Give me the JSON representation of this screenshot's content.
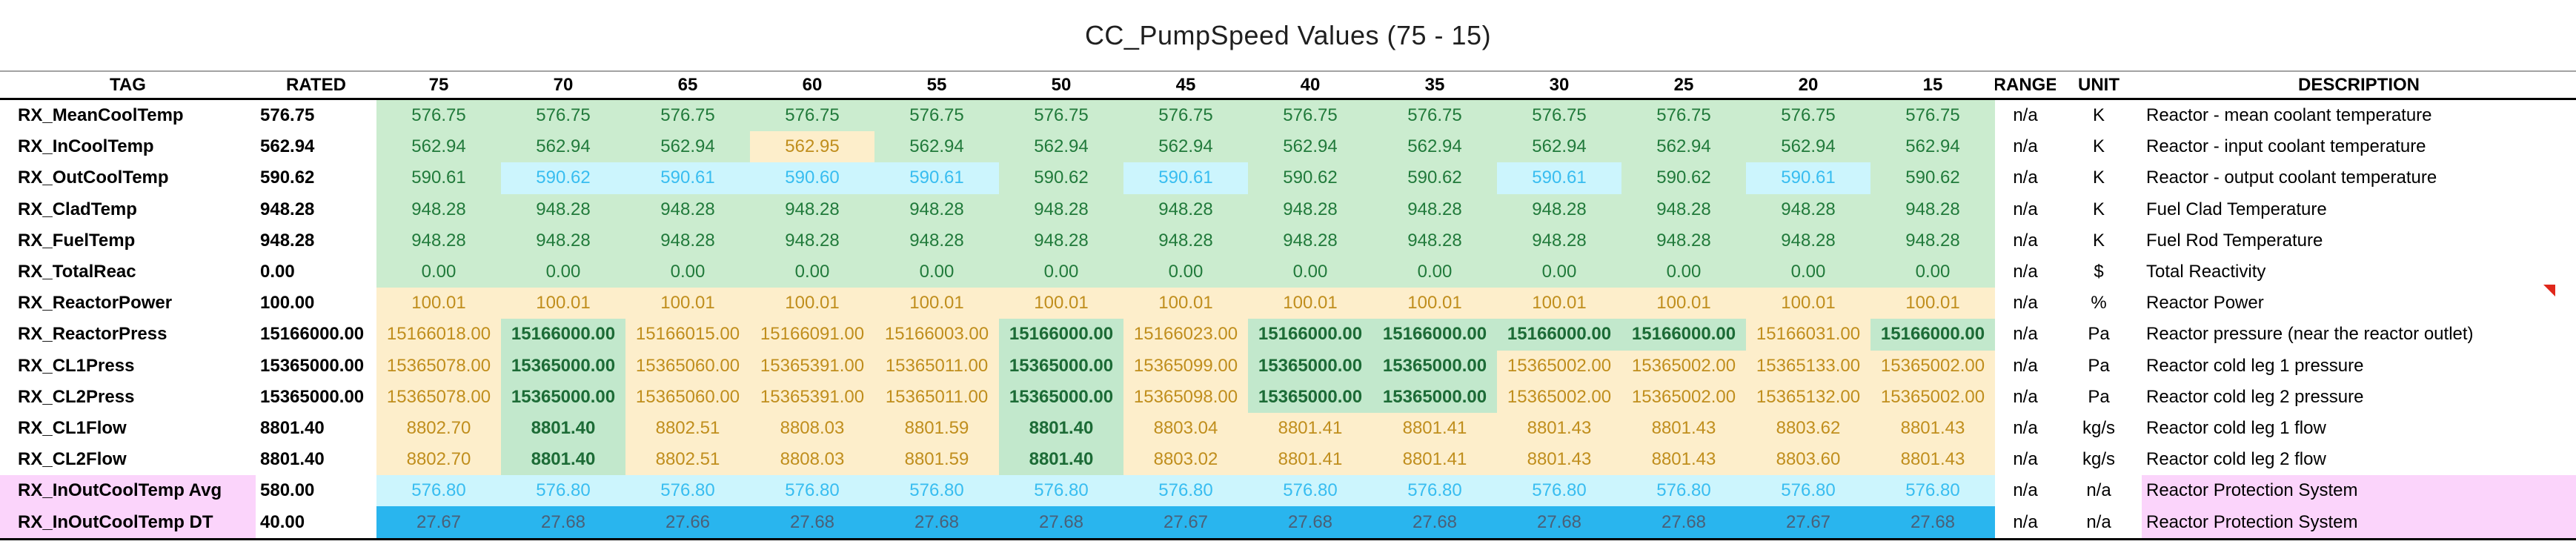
{
  "title": "CC_PumpSpeed Values (75 - 15)",
  "colors": {
    "good_bg": "#cbeccf",
    "good_text": "#217a3b",
    "match_bg": "#c2e8cc",
    "match_text": "#1c6b36",
    "warn_bg": "#fdeecb",
    "warn_text": "#c08e1d",
    "cyan_bg": "#ccf5fd",
    "cyan_text": "#38bdf0",
    "blue_bg": "#29b5ee",
    "blue_text": "#4a6078",
    "pink_bg": "#fbd4fb",
    "flag_red": "#e0271b"
  },
  "table": {
    "headers": [
      "TAG",
      "RATED",
      "75",
      "70",
      "65",
      "60",
      "55",
      "50",
      "45",
      "40",
      "35",
      "30",
      "25",
      "20",
      "15",
      "RANGE",
      "UNIT",
      "DESCRIPTION"
    ],
    "rows": [
      {
        "tag": "RX_MeanCoolTemp",
        "rated": "576.75",
        "range": "n/a",
        "unit": "K",
        "desc": "Reactor - mean coolant temperature",
        "pink": false,
        "values": [
          [
            "576.75",
            "g"
          ],
          [
            "576.75",
            "g"
          ],
          [
            "576.75",
            "g"
          ],
          [
            "576.75",
            "g"
          ],
          [
            "576.75",
            "g"
          ],
          [
            "576.75",
            "g"
          ],
          [
            "576.75",
            "g"
          ],
          [
            "576.75",
            "g"
          ],
          [
            "576.75",
            "g"
          ],
          [
            "576.75",
            "g"
          ],
          [
            "576.75",
            "g"
          ],
          [
            "576.75",
            "g"
          ],
          [
            "576.75",
            "g"
          ]
        ]
      },
      {
        "tag": "RX_InCoolTemp",
        "rated": "562.94",
        "range": "n/a",
        "unit": "K",
        "desc": "Reactor - input coolant temperature",
        "pink": false,
        "values": [
          [
            "562.94",
            "g"
          ],
          [
            "562.94",
            "g"
          ],
          [
            "562.94",
            "g"
          ],
          [
            "562.95",
            "o"
          ],
          [
            "562.94",
            "g"
          ],
          [
            "562.94",
            "g"
          ],
          [
            "562.94",
            "g"
          ],
          [
            "562.94",
            "g"
          ],
          [
            "562.94",
            "g"
          ],
          [
            "562.94",
            "g"
          ],
          [
            "562.94",
            "g"
          ],
          [
            "562.94",
            "g"
          ],
          [
            "562.94",
            "g"
          ]
        ]
      },
      {
        "tag": "RX_OutCoolTemp",
        "rated": "590.62",
        "range": "n/a",
        "unit": "K",
        "desc": "Reactor - output coolant temperature",
        "pink": false,
        "values": [
          [
            "590.61",
            "g"
          ],
          [
            "590.62",
            "c"
          ],
          [
            "590.61",
            "c"
          ],
          [
            "590.60",
            "c"
          ],
          [
            "590.61",
            "c"
          ],
          [
            "590.62",
            "g"
          ],
          [
            "590.61",
            "c"
          ],
          [
            "590.62",
            "g"
          ],
          [
            "590.62",
            "g"
          ],
          [
            "590.61",
            "c"
          ],
          [
            "590.62",
            "g"
          ],
          [
            "590.61",
            "c"
          ],
          [
            "590.62",
            "g"
          ]
        ]
      },
      {
        "tag": "RX_CladTemp",
        "rated": "948.28",
        "range": "n/a",
        "unit": "K",
        "desc": "Fuel Clad Temperature",
        "pink": false,
        "values": [
          [
            "948.28",
            "g"
          ],
          [
            "948.28",
            "g"
          ],
          [
            "948.28",
            "g"
          ],
          [
            "948.28",
            "g"
          ],
          [
            "948.28",
            "g"
          ],
          [
            "948.28",
            "g"
          ],
          [
            "948.28",
            "g"
          ],
          [
            "948.28",
            "g"
          ],
          [
            "948.28",
            "g"
          ],
          [
            "948.28",
            "g"
          ],
          [
            "948.28",
            "g"
          ],
          [
            "948.28",
            "g"
          ],
          [
            "948.28",
            "g"
          ]
        ]
      },
      {
        "tag": "RX_FuelTemp",
        "rated": "948.28",
        "range": "n/a",
        "unit": "K",
        "desc": "Fuel Rod Temperature",
        "pink": false,
        "values": [
          [
            "948.28",
            "g"
          ],
          [
            "948.28",
            "g"
          ],
          [
            "948.28",
            "g"
          ],
          [
            "948.28",
            "g"
          ],
          [
            "948.28",
            "g"
          ],
          [
            "948.28",
            "g"
          ],
          [
            "948.28",
            "g"
          ],
          [
            "948.28",
            "g"
          ],
          [
            "948.28",
            "g"
          ],
          [
            "948.28",
            "g"
          ],
          [
            "948.28",
            "g"
          ],
          [
            "948.28",
            "g"
          ],
          [
            "948.28",
            "g"
          ]
        ]
      },
      {
        "tag": "RX_TotalReac",
        "rated": "0.00",
        "range": "n/a",
        "unit": "$",
        "desc": "Total Reactivity",
        "pink": false,
        "values": [
          [
            "0.00",
            "g"
          ],
          [
            "0.00",
            "g"
          ],
          [
            "0.00",
            "g"
          ],
          [
            "0.00",
            "g"
          ],
          [
            "0.00",
            "g"
          ],
          [
            "0.00",
            "g"
          ],
          [
            "0.00",
            "g"
          ],
          [
            "0.00",
            "g"
          ],
          [
            "0.00",
            "g"
          ],
          [
            "0.00",
            "g"
          ],
          [
            "0.00",
            "g"
          ],
          [
            "0.00",
            "g"
          ],
          [
            "0.00",
            "g"
          ]
        ]
      },
      {
        "tag": "RX_ReactorPower",
        "rated": "100.00",
        "range": "n/a",
        "unit": "%",
        "desc": "Reactor Power",
        "pink": false,
        "values": [
          [
            "100.01",
            "o"
          ],
          [
            "100.01",
            "o"
          ],
          [
            "100.01",
            "o"
          ],
          [
            "100.01",
            "o"
          ],
          [
            "100.01",
            "o"
          ],
          [
            "100.01",
            "o"
          ],
          [
            "100.01",
            "o"
          ],
          [
            "100.01",
            "o"
          ],
          [
            "100.01",
            "o"
          ],
          [
            "100.01",
            "o"
          ],
          [
            "100.01",
            "o"
          ],
          [
            "100.01",
            "o"
          ],
          [
            "100.01",
            "o"
          ]
        ]
      },
      {
        "tag": "RX_ReactorPress",
        "rated": "15166000.00",
        "range": "n/a",
        "unit": "Pa",
        "desc": "Reactor pressure (near the reactor outlet)",
        "pink": false,
        "values": [
          [
            "15166018.00",
            "o"
          ],
          [
            "15166000.00",
            "gb"
          ],
          [
            "15166015.00",
            "o"
          ],
          [
            "15166091.00",
            "o"
          ],
          [
            "15166003.00",
            "o"
          ],
          [
            "15166000.00",
            "gb"
          ],
          [
            "15166023.00",
            "o"
          ],
          [
            "15166000.00",
            "gb"
          ],
          [
            "15166000.00",
            "gb"
          ],
          [
            "15166000.00",
            "gb"
          ],
          [
            "15166000.00",
            "gb"
          ],
          [
            "15166031.00",
            "o"
          ],
          [
            "15166000.00",
            "gb"
          ]
        ]
      },
      {
        "tag": "RX_CL1Press",
        "rated": "15365000.00",
        "range": "n/a",
        "unit": "Pa",
        "desc": "Reactor cold leg 1 pressure",
        "pink": false,
        "values": [
          [
            "15365078.00",
            "o"
          ],
          [
            "15365000.00",
            "gb"
          ],
          [
            "15365060.00",
            "o"
          ],
          [
            "15365391.00",
            "o"
          ],
          [
            "15365011.00",
            "o"
          ],
          [
            "15365000.00",
            "gb"
          ],
          [
            "15365099.00",
            "o"
          ],
          [
            "15365000.00",
            "gb"
          ],
          [
            "15365000.00",
            "gb"
          ],
          [
            "15365002.00",
            "o"
          ],
          [
            "15365002.00",
            "o"
          ],
          [
            "15365133.00",
            "o"
          ],
          [
            "15365002.00",
            "o"
          ]
        ]
      },
      {
        "tag": "RX_CL2Press",
        "rated": "15365000.00",
        "range": "n/a",
        "unit": "Pa",
        "desc": "Reactor cold leg 2 pressure",
        "pink": false,
        "values": [
          [
            "15365078.00",
            "o"
          ],
          [
            "15365000.00",
            "gb"
          ],
          [
            "15365060.00",
            "o"
          ],
          [
            "15365391.00",
            "o"
          ],
          [
            "15365011.00",
            "o"
          ],
          [
            "15365000.00",
            "gb"
          ],
          [
            "15365098.00",
            "o"
          ],
          [
            "15365000.00",
            "gb"
          ],
          [
            "15365000.00",
            "gb"
          ],
          [
            "15365002.00",
            "o"
          ],
          [
            "15365002.00",
            "o"
          ],
          [
            "15365132.00",
            "o"
          ],
          [
            "15365002.00",
            "o"
          ]
        ]
      },
      {
        "tag": "RX_CL1Flow",
        "rated": "8801.40",
        "range": "n/a",
        "unit": "kg/s",
        "desc": "Reactor cold leg 1 flow",
        "pink": false,
        "values": [
          [
            "8802.70",
            "o"
          ],
          [
            "8801.40",
            "gb"
          ],
          [
            "8802.51",
            "o"
          ],
          [
            "8808.03",
            "o"
          ],
          [
            "8801.59",
            "o"
          ],
          [
            "8801.40",
            "gb"
          ],
          [
            "8803.04",
            "o"
          ],
          [
            "8801.41",
            "o"
          ],
          [
            "8801.41",
            "o"
          ],
          [
            "8801.43",
            "o"
          ],
          [
            "8801.43",
            "o"
          ],
          [
            "8803.62",
            "o"
          ],
          [
            "8801.43",
            "o"
          ]
        ]
      },
      {
        "tag": "RX_CL2Flow",
        "rated": "8801.40",
        "range": "n/a",
        "unit": "kg/s",
        "desc": "Reactor cold leg 2 flow",
        "pink": false,
        "values": [
          [
            "8802.70",
            "o"
          ],
          [
            "8801.40",
            "gb"
          ],
          [
            "8802.51",
            "o"
          ],
          [
            "8808.03",
            "o"
          ],
          [
            "8801.59",
            "o"
          ],
          [
            "8801.40",
            "gb"
          ],
          [
            "8803.02",
            "o"
          ],
          [
            "8801.41",
            "o"
          ],
          [
            "8801.41",
            "o"
          ],
          [
            "8801.43",
            "o"
          ],
          [
            "8801.43",
            "o"
          ],
          [
            "8803.60",
            "o"
          ],
          [
            "8801.43",
            "o"
          ]
        ]
      },
      {
        "tag": "RX_InOutCoolTemp Avg",
        "rated": "580.00",
        "range": "n/a",
        "unit": "n/a",
        "desc": "Reactor Protection System",
        "pink": true,
        "values": [
          [
            "576.80",
            "c"
          ],
          [
            "576.80",
            "c"
          ],
          [
            "576.80",
            "c"
          ],
          [
            "576.80",
            "c"
          ],
          [
            "576.80",
            "c"
          ],
          [
            "576.80",
            "c"
          ],
          [
            "576.80",
            "c"
          ],
          [
            "576.80",
            "c"
          ],
          [
            "576.80",
            "c"
          ],
          [
            "576.80",
            "c"
          ],
          [
            "576.80",
            "c"
          ],
          [
            "576.80",
            "c"
          ],
          [
            "576.80",
            "c"
          ]
        ]
      },
      {
        "tag": "RX_InOutCoolTemp DT",
        "rated": "40.00",
        "range": "n/a",
        "unit": "n/a",
        "desc": "Reactor Protection System",
        "pink": true,
        "values": [
          [
            "27.67",
            "b"
          ],
          [
            "27.68",
            "b"
          ],
          [
            "27.66",
            "b"
          ],
          [
            "27.68",
            "b"
          ],
          [
            "27.68",
            "b"
          ],
          [
            "27.68",
            "b"
          ],
          [
            "27.67",
            "b"
          ],
          [
            "27.68",
            "b"
          ],
          [
            "27.68",
            "b"
          ],
          [
            "27.68",
            "b"
          ],
          [
            "27.68",
            "b"
          ],
          [
            "27.67",
            "b"
          ],
          [
            "27.68",
            "b"
          ]
        ]
      }
    ]
  },
  "annotations": {
    "red_flag": "comment-flag near Reactor Power row, right edge"
  }
}
